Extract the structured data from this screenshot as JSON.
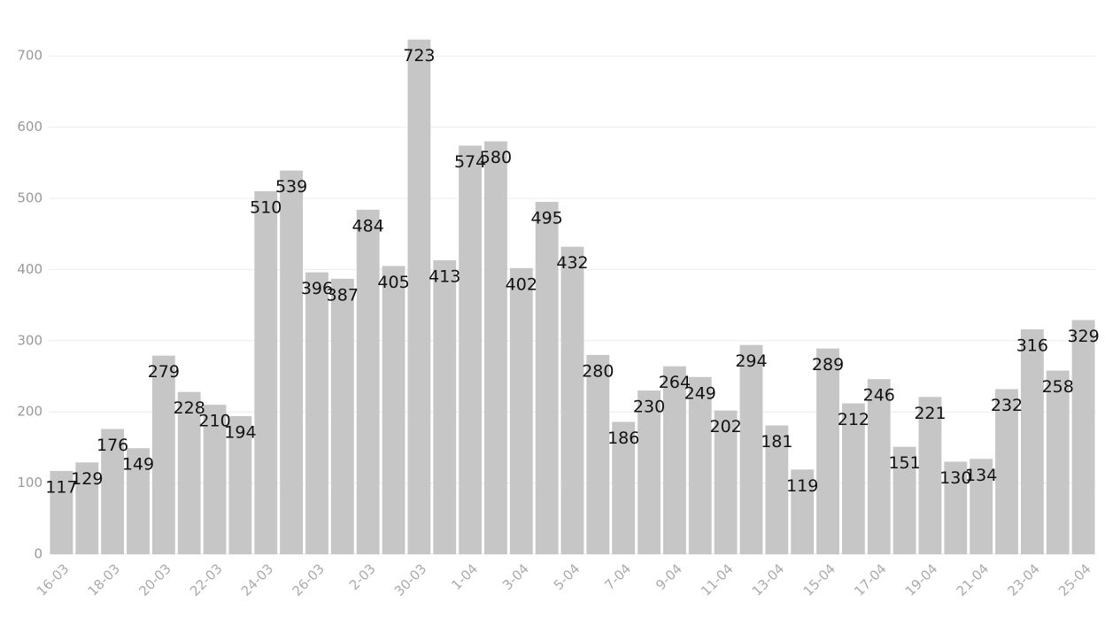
{
  "chart_data": {
    "type": "bar",
    "categories": [
      "16-03",
      null,
      "18-03",
      null,
      "20-03",
      null,
      "22-03",
      null,
      "24-03",
      null,
      "26-03",
      null,
      "2-03",
      null,
      "30-03",
      null,
      "1-04",
      null,
      "3-04",
      null,
      "5-04",
      null,
      "7-04",
      null,
      "9-04",
      null,
      "11-04",
      null,
      "13-04",
      null,
      "15-04",
      null,
      "17-04",
      null,
      "19-04",
      null,
      "21-04",
      null,
      "23-04",
      null,
      "25-04"
    ],
    "values": [
      117,
      129,
      176,
      149,
      279,
      228,
      210,
      194,
      510,
      539,
      396,
      387,
      484,
      405,
      723,
      413,
      574,
      580,
      402,
      495,
      432,
      280,
      186,
      230,
      264,
      249,
      202,
      294,
      181,
      119,
      289,
      212,
      246,
      151,
      221,
      130,
      134,
      232,
      316,
      258,
      329
    ],
    "color": "#c6c6c6",
    "ylim": [
      0,
      750
    ],
    "yticks": [
      0,
      100,
      200,
      300,
      400,
      500,
      600,
      700
    ],
    "grid": true
  }
}
